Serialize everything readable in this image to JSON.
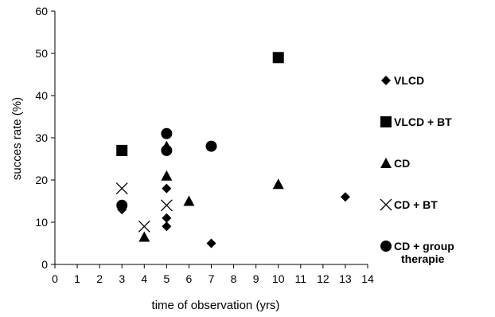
{
  "chart_data": {
    "type": "scatter",
    "title": "",
    "xlabel": "time of observation (yrs)",
    "ylabel": "succes rate (%)",
    "xlim": [
      0,
      14
    ],
    "ylim": [
      0,
      60
    ],
    "x_ticks": [
      0,
      1,
      2,
      3,
      4,
      5,
      6,
      7,
      8,
      9,
      10,
      11,
      12,
      13,
      14
    ],
    "y_ticks": [
      0,
      10,
      20,
      30,
      40,
      50,
      60
    ],
    "grid": false,
    "legend_position": "right",
    "series": [
      {
        "name": "VLCD",
        "marker": "diamond",
        "color": "#000000",
        "points": [
          [
            3,
            13
          ],
          [
            5,
            18
          ],
          [
            5,
            11
          ],
          [
            5,
            9
          ],
          [
            7,
            5
          ],
          [
            13,
            16
          ]
        ]
      },
      {
        "name": "VLCD + BT",
        "marker": "square",
        "color": "#000000",
        "points": [
          [
            3,
            27
          ],
          [
            10,
            49
          ]
        ]
      },
      {
        "name": "CD",
        "marker": "triangle",
        "color": "#000000",
        "points": [
          [
            4,
            6.5
          ],
          [
            5,
            28
          ],
          [
            5,
            21
          ],
          [
            6,
            15
          ],
          [
            10,
            19
          ]
        ]
      },
      {
        "name": "CD + BT",
        "marker": "x",
        "color": "#000000",
        "points": [
          [
            3,
            18
          ],
          [
            4,
            9
          ],
          [
            5,
            14
          ]
        ]
      },
      {
        "name": "CD + group therapie",
        "marker": "circle",
        "color": "#000000",
        "points": [
          [
            3,
            14
          ],
          [
            5,
            31
          ],
          [
            5,
            27
          ],
          [
            7,
            28
          ]
        ]
      }
    ]
  }
}
